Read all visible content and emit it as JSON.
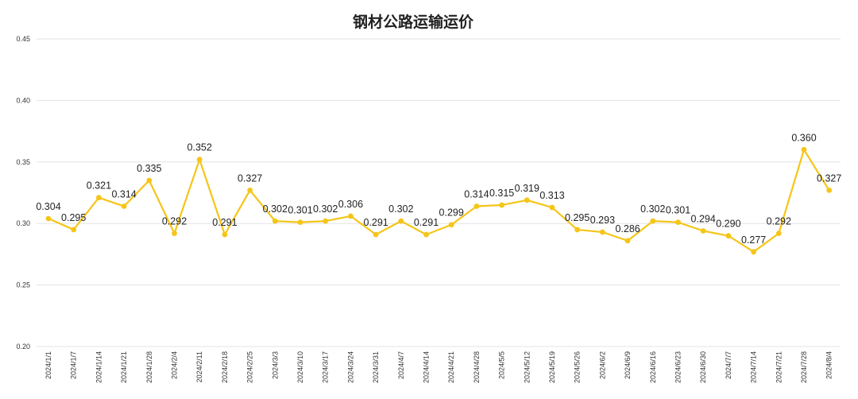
{
  "chart_data": {
    "type": "line",
    "title": "钢材公路运输运价",
    "xlabel": "",
    "ylabel": "",
    "ylim": [
      0.2,
      0.45
    ],
    "yticks": [
      "0.20",
      "0.25",
      "0.30",
      "0.35",
      "0.40",
      "0.45"
    ],
    "grid": true,
    "legend": "none",
    "line_color": "#F5C518",
    "categories": [
      "2024/1/1",
      "2024/1/7",
      "2024/1/14",
      "2024/1/21",
      "2024/1/28",
      "2024/2/4",
      "2024/2/11",
      "2024/2/18",
      "2024/2/25",
      "2024/3/3",
      "2024/3/10",
      "2024/3/17",
      "2024/3/24",
      "2024/3/31",
      "2024/4/7",
      "2024/4/14",
      "2024/4/21",
      "2024/4/28",
      "2024/5/5",
      "2024/5/12",
      "2024/5/19",
      "2024/5/26",
      "2024/6/2",
      "2024/6/9",
      "2024/6/16",
      "2024/6/23",
      "2024/6/30",
      "2024/7/7",
      "2024/7/14",
      "2024/7/21",
      "2024/7/28",
      "2024/8/4"
    ],
    "values": [
      0.304,
      0.295,
      0.321,
      0.314,
      0.335,
      0.292,
      0.352,
      0.291,
      0.327,
      0.302,
      0.301,
      0.302,
      0.306,
      0.291,
      0.302,
      0.291,
      0.299,
      0.314,
      0.315,
      0.319,
      0.313,
      0.295,
      0.293,
      0.286,
      0.302,
      0.301,
      0.294,
      0.29,
      0.277,
      0.292,
      0.36,
      0.327
    ],
    "data_labels": [
      "0.304",
      "0.295",
      "0.321",
      "0.314",
      "0.335",
      "0.292",
      "0.352",
      "0.291",
      "0.327",
      "0.302",
      "0.301",
      "0.302",
      "0.306",
      "0.291",
      "0.302",
      "0.291",
      "0.299",
      "0.314",
      "0.315",
      "0.319",
      "0.313",
      "0.295",
      "0.293",
      "0.286",
      "0.302",
      "0.301",
      "0.294",
      "0.290",
      "0.277",
      "0.292",
      "0.360",
      "0.327"
    ]
  }
}
